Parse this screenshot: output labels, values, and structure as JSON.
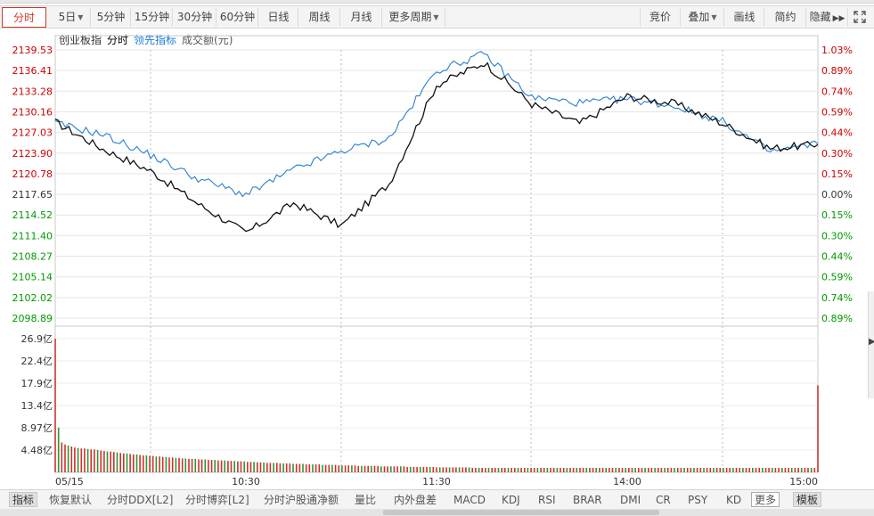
{
  "toolbar": {
    "left_tabs": [
      "分时",
      "5日",
      "5分钟",
      "15分钟",
      "30分钟",
      "60分钟",
      "日线",
      "周线",
      "月线",
      "更多周期"
    ],
    "right_tabs": [
      "竞价",
      "叠加",
      "画线",
      "简约",
      "隐藏"
    ],
    "expand_icon": "fullscreen-icon"
  },
  "legend": {
    "index_name": "创业板指",
    "mode": "分时",
    "lead_indicator": "领先指标",
    "volume_label": "成交额(元)"
  },
  "price_axis": {
    "left_labels": [
      "2139.53",
      "2136.41",
      "2133.28",
      "2130.16",
      "2127.03",
      "2123.90",
      "2120.78",
      "2117.65",
      "2114.52",
      "2111.40",
      "2108.27",
      "2105.14",
      "2102.02",
      "2098.89"
    ],
    "right_labels": [
      "1.03%",
      "0.89%",
      "0.74%",
      "0.59%",
      "0.44%",
      "0.30%",
      "0.15%",
      "0.00%",
      "0.15%",
      "0.30%",
      "0.44%",
      "0.59%",
      "0.74%",
      "0.89%"
    ],
    "up_color": "#cc0000",
    "down_color": "#009900",
    "base_color": "#333333"
  },
  "volume_axis": {
    "labels": [
      "26.9亿",
      "22.4亿",
      "17.9亿",
      "13.4亿",
      "8.97亿",
      "4.48亿"
    ]
  },
  "time_axis": {
    "labels": [
      "05/15",
      "10:30",
      "11:30",
      "14:00",
      "15:00"
    ]
  },
  "chart_data": {
    "type": "line",
    "x": [
      "09:30",
      "09:45",
      "10:00",
      "10:15",
      "10:30",
      "10:45",
      "11:00",
      "11:15",
      "11:30/13:00",
      "13:15",
      "13:30",
      "13:45",
      "14:00",
      "14:15",
      "14:30",
      "14:45",
      "15:00"
    ],
    "series": [
      {
        "name": "分时",
        "values": [
          2128.6,
          2124.5,
          2121.2,
          2116.2,
          2111.8,
          2116.3,
          2112.9,
          2119.2,
          2134.2,
          2137.6,
          2131.3,
          2128.4,
          2132.5,
          2131.4,
          2128.4,
          2124.6,
          2125.2
        ]
      },
      {
        "name": "领先指标",
        "values": [
          2128.4,
          2126.7,
          2123.6,
          2120.0,
          2117.6,
          2121.4,
          2124.2,
          2126.1,
          2136.4,
          2138.9,
          2132.3,
          2131.5,
          2132.1,
          2131.0,
          2128.7,
          2124.1,
          2125.3
        ]
      }
    ],
    "base_price": 2117.65,
    "ylim": [
      2098.89,
      2139.53
    ],
    "volume": {
      "unit": "亿",
      "values": [
        26.9,
        9.0,
        6.0,
        5.6,
        5.4,
        5.2,
        5.0,
        4.9,
        4.8,
        4.8,
        4.7,
        4.6,
        4.6,
        4.5,
        4.4,
        4.3,
        4.2,
        4.2,
        4.1,
        4.0,
        3.9,
        3.8,
        3.8,
        3.7,
        3.6,
        3.6,
        3.5,
        3.4,
        3.4,
        3.3,
        3.3,
        3.2,
        3.2,
        3.1,
        3.1,
        3.0,
        3.0,
        2.9,
        2.9,
        2.8,
        2.8,
        2.7,
        2.7,
        2.7,
        2.6,
        2.6,
        2.6,
        2.5,
        2.5,
        2.5,
        2.4,
        2.4,
        2.4,
        2.3,
        2.3,
        2.3,
        2.2,
        2.2,
        2.2,
        2.1,
        2.1,
        2.1,
        2.0,
        2.0,
        2.0,
        1.9,
        1.9,
        1.9,
        1.9,
        1.8,
        1.8,
        1.8,
        1.8,
        1.7,
        1.7,
        1.7,
        1.7,
        1.6,
        1.6,
        1.6,
        1.6,
        1.6,
        1.5,
        1.5,
        1.5,
        1.5,
        1.5,
        1.4,
        1.4,
        1.4,
        1.4,
        1.4,
        1.4,
        1.3,
        1.3,
        1.3,
        1.3,
        1.3,
        1.3,
        1.3,
        1.2,
        1.2,
        1.2,
        1.2,
        1.2,
        1.2,
        1.2,
        1.2,
        1.1,
        1.1,
        1.1,
        1.1,
        1.1,
        1.1,
        1.1,
        1.1,
        1.1,
        1.0,
        1.0,
        1.0,
        1.0,
        1.0,
        1.0,
        1.0,
        1.0,
        1.0,
        1.0,
        1.0,
        0.9,
        0.9,
        0.9,
        0.9,
        0.9,
        0.9,
        0.9,
        0.9,
        0.9,
        0.9,
        0.9,
        0.9,
        0.9,
        0.9,
        0.9,
        0.9,
        0.9,
        0.9,
        0.9,
        0.9,
        0.9,
        0.9,
        0.9,
        0.9,
        0.9,
        0.9,
        0.9,
        0.9,
        0.9,
        0.9,
        0.9,
        0.9,
        0.9,
        0.9,
        0.9,
        0.9,
        0.9,
        0.9,
        0.9,
        0.9,
        0.9,
        0.9,
        0.9,
        0.9,
        0.9,
        0.9,
        0.9,
        0.9,
        0.9,
        0.9,
        0.9,
        0.9,
        0.9,
        0.9,
        0.9,
        0.9,
        0.9,
        0.9,
        0.9,
        0.9,
        0.9,
        0.9,
        0.9,
        0.9,
        0.9,
        0.9,
        0.9,
        0.9,
        0.9,
        0.9,
        0.9,
        0.9,
        0.9,
        0.9,
        0.9,
        0.9,
        0.9,
        0.9,
        0.9,
        0.9,
        0.9,
        0.9,
        0.9,
        0.9,
        0.9,
        0.9,
        0.9,
        0.9,
        0.9,
        0.9,
        0.9,
        0.9,
        0.9,
        0.9,
        0.9,
        0.9,
        0.9,
        0.9,
        0.9,
        0.9,
        0.9,
        0.9,
        0.9,
        0.9,
        0.9,
        0.9,
        17.5
      ]
    }
  },
  "indicator_bar": {
    "items": [
      "指标",
      "恢复默认",
      "分时DDX[L2]",
      "分时博弈[L2]",
      "分时沪股通净额",
      "量比",
      "内外盘差",
      "MACD",
      "KDJ",
      "RSI",
      "BRAR",
      "DMI",
      "CR",
      "PSY",
      "KD",
      "更多",
      "模板"
    ]
  }
}
